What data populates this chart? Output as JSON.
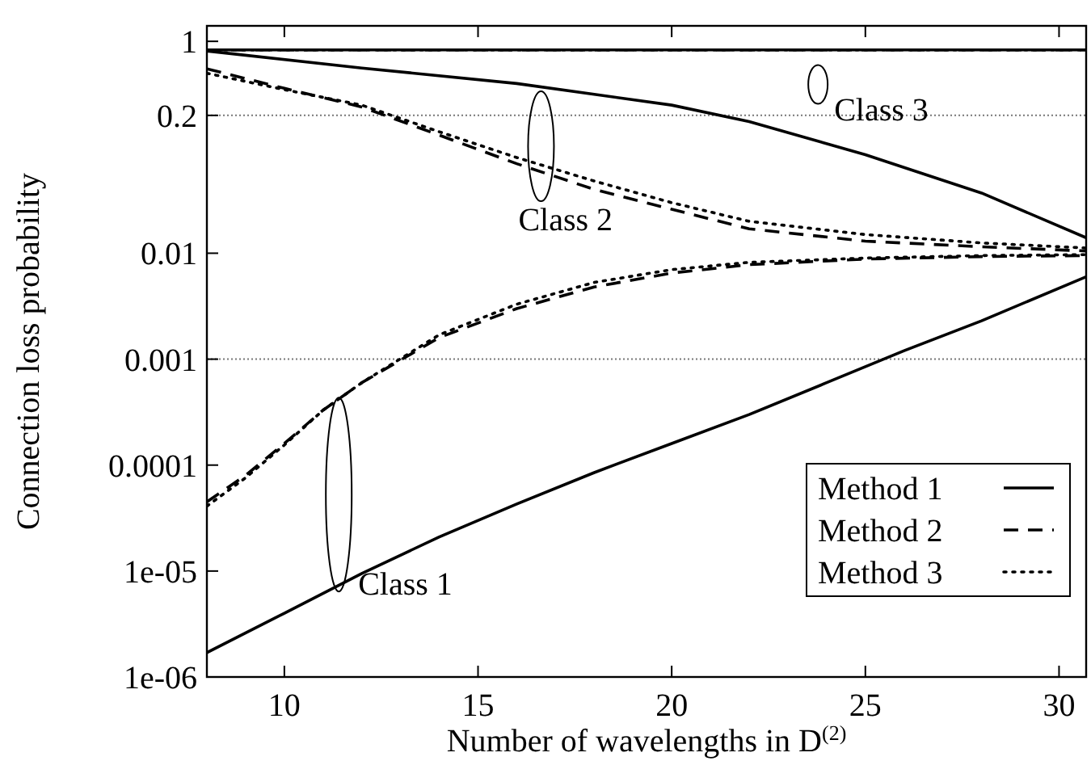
{
  "chart_data": {
    "type": "line",
    "xlabel": "Number of wavelengths in D$^{(2)}$",
    "ylabel": "Connection loss probability",
    "log": "y",
    "xlim": [
      8,
      30.7
    ],
    "ylim": [
      1e-06,
      1.4
    ],
    "xticks": [
      10,
      15,
      20,
      25,
      30
    ],
    "yticks": [
      {
        "value": 1e-06,
        "label": "1e-06"
      },
      {
        "value": 1e-05,
        "label": "1e-05"
      },
      0.0001,
      0.001,
      0.01,
      0.2,
      1
    ],
    "legend": "bottom right",
    "grid": false,
    "ref_lines": [
      {
        "axis": "y",
        "value": 0.2,
        "color": "#777777",
        "line_style": "dotted"
      },
      {
        "axis": "y",
        "value": 0.001,
        "color": "#777777",
        "line_style": "dotted"
      }
    ],
    "annotations": [
      "Class 1",
      "Class 2",
      "Class 3"
    ],
    "series": [
      {
        "name": "Method 1",
        "color": "#000000",
        "line_style": "solid",
        "x": [
          8,
          10,
          12,
          14,
          16,
          18,
          20,
          22,
          24,
          26,
          28,
          30.7
        ],
        "values": [
          1.7e-06,
          4e-06,
          9.5e-06,
          2.1e-05,
          4.3e-05,
          8.5e-05,
          0.00016,
          0.0003,
          0.0006,
          0.0012,
          0.0023,
          0.006
        ]
      },
      {
        "name": "Method 2",
        "color": "#000000",
        "line_style": "dashed",
        "x": [
          8,
          9,
          10,
          11,
          12,
          14,
          16,
          18,
          20,
          22,
          25,
          28,
          30.7
        ],
        "values": [
          4.5e-05,
          8e-05,
          0.00016,
          0.00033,
          0.0006,
          0.0016,
          0.003,
          0.0048,
          0.0065,
          0.0078,
          0.0088,
          0.0093,
          0.0095
        ]
      },
      {
        "name": "Method 3",
        "color": "#000000",
        "line_style": "dotted",
        "x": [
          8,
          9,
          10,
          11,
          12,
          14,
          16,
          18,
          20,
          22,
          25,
          28,
          30.7
        ],
        "values": [
          4.1e-05,
          7.6e-05,
          0.000155,
          0.00033,
          0.0006,
          0.0017,
          0.0033,
          0.0053,
          0.007,
          0.0082,
          0.009,
          0.0095,
          0.0097
        ]
      },
      {
        "color": "#000000",
        "line_style": "solid",
        "x": [
          8,
          12,
          16,
          20,
          22,
          25,
          28,
          30.7
        ],
        "values": [
          0.81,
          0.56,
          0.4,
          0.25,
          0.175,
          0.085,
          0.037,
          0.014
        ]
      },
      {
        "color": "#000000",
        "line_style": "dashed",
        "x": [
          8,
          10,
          12,
          14,
          16,
          18,
          20,
          22,
          25,
          28,
          30.7
        ],
        "values": [
          0.55,
          0.36,
          0.24,
          0.13,
          0.07,
          0.04,
          0.026,
          0.017,
          0.013,
          0.0115,
          0.0105
        ]
      },
      {
        "color": "#000000",
        "line_style": "dotted",
        "x": [
          8,
          10,
          12,
          14,
          16,
          18,
          20,
          22,
          25,
          28,
          30.7
        ],
        "values": [
          0.5,
          0.35,
          0.25,
          0.14,
          0.08,
          0.048,
          0.03,
          0.02,
          0.015,
          0.0125,
          0.0112
        ]
      },
      {
        "color": "#000000",
        "line_style": "solid",
        "x": [
          8,
          30.7
        ],
        "values": [
          0.83,
          0.83
        ]
      },
      {
        "color": "#000000",
        "line_style": "dashed",
        "x": [
          8,
          30.7
        ],
        "values": [
          0.83,
          0.83
        ]
      },
      {
        "color": "#000000",
        "line_style": "dotted",
        "x": [
          8,
          30.7
        ],
        "values": [
          0.83,
          0.83
        ]
      }
    ]
  }
}
